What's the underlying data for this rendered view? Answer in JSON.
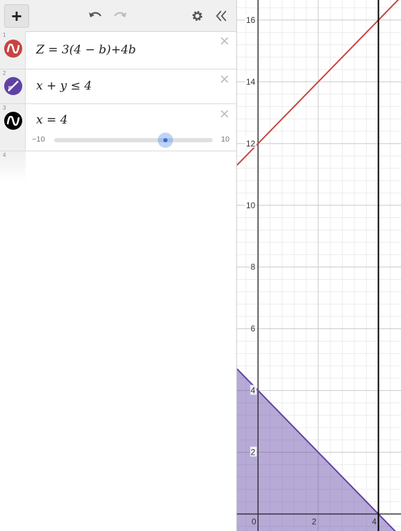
{
  "toolbar": {
    "add_label": "+",
    "undo_icon": "undo-icon",
    "redo_icon": "redo-icon",
    "settings_icon": "gear-icon",
    "collapse_icon": "double-chevron-left-icon"
  },
  "expressions": [
    {
      "index": "1",
      "latex_text": "Z = 3(4 − b)+4b",
      "color": "#c74440",
      "icon": "graph-wave-icon"
    },
    {
      "index": "2",
      "latex_text": "x + y ≤ 4",
      "color": "#6042a6",
      "icon": "shaded-region-icon"
    },
    {
      "index": "3",
      "latex_text": "x = 4",
      "color": "#000000",
      "icon": "graph-wave-icon",
      "slider": {
        "min_label": "−10",
        "max_label": "10",
        "min": -10,
        "max": 10,
        "value": 4
      }
    },
    {
      "index": "4",
      "latex_text": ""
    }
  ],
  "graph": {
    "x_range": [
      -0.7,
      4.75
    ],
    "y_range": [
      -0.55,
      16.65
    ],
    "x_tick_labels": [
      "0",
      "2",
      "4"
    ],
    "y_tick_labels": [
      "2",
      "4",
      "6",
      "8",
      "10",
      "12",
      "14",
      "16"
    ],
    "minor_grid_step": 0.4,
    "major_grid_step": 2,
    "red_line": {
      "color": "#c74440",
      "slope": 1,
      "intercept": 12
    },
    "region": {
      "color": "#6042a6",
      "boundary": "x + y = 4",
      "side": "below"
    },
    "vertical_line": {
      "color": "#000000",
      "x": 4
    }
  }
}
